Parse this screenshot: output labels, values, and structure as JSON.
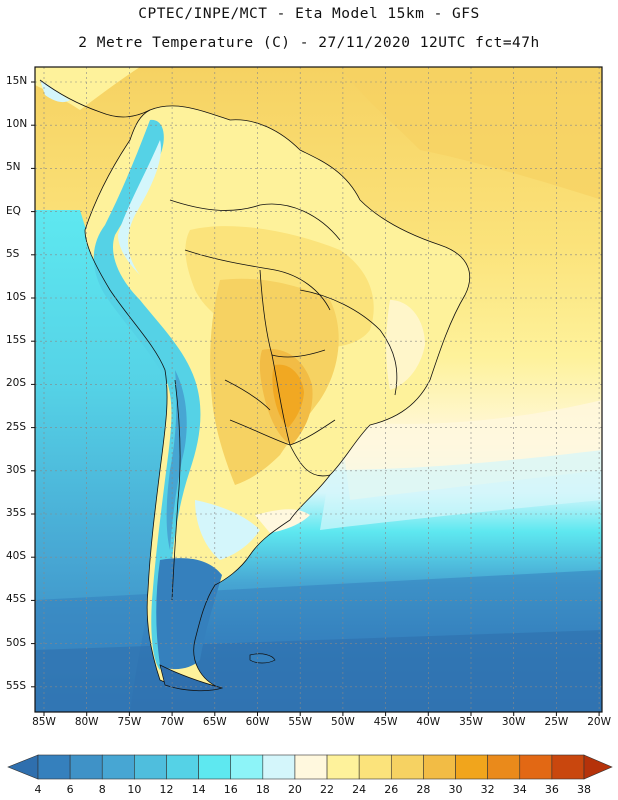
{
  "header": {
    "line1": "CPTEC/INPE/MCT -  Eta Model 15km - GFS",
    "line2": "2 Metre Temperature (C) - 27/11/2020 12UTC fct=47h"
  },
  "lat_labels": [
    "15N",
    "10N",
    "5N",
    "EQ",
    "5S",
    "10S",
    "15S",
    "20S",
    "25S",
    "30S",
    "35S",
    "40S",
    "45S",
    "50S",
    "55S"
  ],
  "lon_labels": [
    "85W",
    "80W",
    "75W",
    "70W",
    "65W",
    "60W",
    "55W",
    "50W",
    "45W",
    "40W",
    "35W",
    "30W",
    "25W",
    "20W"
  ],
  "colorbar": {
    "labels": [
      "4",
      "6",
      "8",
      "10",
      "12",
      "14",
      "16",
      "18",
      "20",
      "22",
      "24",
      "26",
      "28",
      "30",
      "32",
      "34",
      "36",
      "38"
    ],
    "colors": [
      "#2f6fae",
      "#3580bd",
      "#3f92c7",
      "#47a6d3",
      "#4fbedd",
      "#55d2e6",
      "#5ee8f0",
      "#8df4f8",
      "#d4f6fb",
      "#fff8de",
      "#fef29b",
      "#fbe37b",
      "#f6d262",
      "#f2bc45",
      "#f1a51c",
      "#ea8a1b",
      "#e26814",
      "#c9470e",
      "#b5320a"
    ]
  }
}
